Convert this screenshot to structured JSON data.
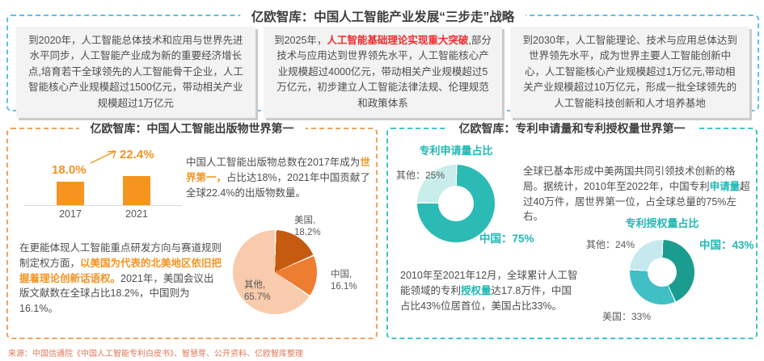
{
  "top": {
    "title": "亿欧智库：中国人工智能产业发展“三步走”战略",
    "steps": [
      {
        "pre": "到2020年，人工智能总体技术和应用与世界先进水平同步，人工智能产业成为新的重要经济增长点,培育若干全球领先的人工智能骨干企业，人工智能核心产业规模超过1500亿元，带动相关产业规模超过1万亿元",
        "highlight": "",
        "post": ""
      },
      {
        "pre": "到2025年，",
        "highlight": "人工智能基础理论实现重大突破",
        "post": ",部分技术与应用达到世界领先水平，人工智能核心产业规模超过4000亿元，带动相关产业规模超过5万亿元，初步建立人工智能法律法规、伦理规范和政策体系"
      },
      {
        "pre": "到2030年，人工智能理论、技术与应用总体达到世界领先水平，成为世界主要人工智能创新中心，人工智能核心产业规模超过1万亿元,带动相关产业规模超过10万亿元，形成一批全球领先的人工智能科技创新和人才培养基地",
        "highlight": "",
        "post": ""
      }
    ]
  },
  "publications": {
    "title": "亿欧智库：中国人工智能出版物世界第一",
    "summary1": {
      "pre": "中国人工智能出版物总数在2017年成为",
      "highlight": "世界第一，",
      "post": "占比达18%，2021年中国贡献了全球22.4%的出版物数量。"
    },
    "summary2": {
      "pre": "在更能体现人工智能重点研发方向与赛道规则制定权方面，",
      "highlight": "以美国为代表的北美地区依旧把握着理论创新话语权。",
      "post": "2021年，美国会议出版文献数在全球占比18.2%，中国则为16.1%。"
    }
  },
  "patents": {
    "title": "亿欧智库：专利申请量和专利授权量世界第一",
    "summary1": {
      "pre": "全球已基本形成中美两国共同引领技术创新的格局。据统计，2010年至2022年，中国专利",
      "highlight": "申请量",
      "post": "超过40万件，居世界第一位，占全球总量的75%左右。"
    },
    "summary2": {
      "pre": "2010年至2021年12月，全球累计人工智能领域的专利",
      "highlight": "授权量",
      "post": "达17.8万件，中国占比43%位居首位，美国占比33%。"
    }
  },
  "footer": {
    "source": "来源：中国信通院《中国人工智能专利白皮书》、智慧芽、公开资料、亿欧智库整理"
  },
  "colors": {
    "panel_blue": "#63BEEA",
    "panel_orange": "#F0A35E",
    "panel_teal": "#3EC6C9",
    "accent_orange": "#F39422",
    "accent_teal": "#1FB9B4",
    "accent_red": "#F02B2B"
  },
  "chart_data": {
    "publication_bar": {
      "type": "bar",
      "categories": [
        "2017",
        "2021"
      ],
      "values": [
        18.0,
        22.4
      ],
      "value_labels": [
        "18.0%",
        "22.4%"
      ],
      "bar_color": "#F5941F",
      "ylim": [
        0,
        25
      ],
      "grid": false
    },
    "publication_pie": {
      "type": "pie",
      "slices": [
        {
          "name": "美国",
          "value": 18.2,
          "label1": "美国,",
          "label2": "18.2%",
          "color": "#C55A11"
        },
        {
          "name": "中国",
          "value": 16.1,
          "label1": "中国,",
          "label2": "16.1%",
          "color": "#ED7D31"
        },
        {
          "name": "其他",
          "value": 65.7,
          "label1": "其他,",
          "label2": "65.7%",
          "color": "#F8CBAD"
        }
      ]
    },
    "application_donut": {
      "type": "pie",
      "title": "专利申请量占比",
      "slices": [
        {
          "name": "中国",
          "value": 75,
          "label": "中国：75%",
          "color": "#2BBAB4"
        },
        {
          "name": "其他",
          "value": 25,
          "label": "其他：25%",
          "color": "#C8EDEA"
        }
      ]
    },
    "grant_donut": {
      "type": "pie",
      "title": "专利授权量占比",
      "slices": [
        {
          "name": "中国",
          "value": 43,
          "label": "中国：43%",
          "color": "#1A9C8E"
        },
        {
          "name": "美国",
          "value": 33,
          "label": "美国：33%",
          "color": "#40C0C4"
        },
        {
          "name": "其他",
          "value": 24,
          "label": "其他：24%",
          "color": "#C6E9F0"
        }
      ]
    }
  }
}
